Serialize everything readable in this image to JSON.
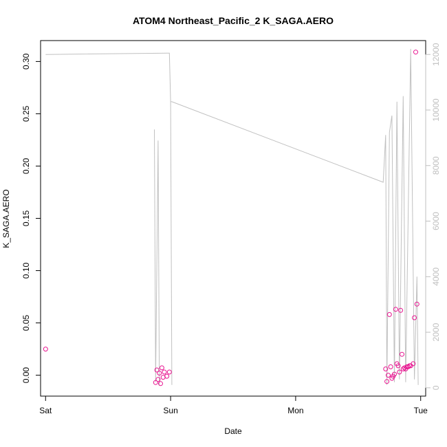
{
  "chart_data": {
    "type": "scatter",
    "title": "ATOM4 Northeast_Pacific_2 K_SAGA.AERO",
    "xlabel": "Date",
    "ylabel": "K_SAGA.AERO",
    "x_unit": "days since Sat 00:00",
    "xlim": [
      -0.04,
      3.04
    ],
    "x_ticks": [
      {
        "value": 0,
        "label": "Sat"
      },
      {
        "value": 1,
        "label": "Sun"
      },
      {
        "value": 2,
        "label": "Mon"
      },
      {
        "value": 3,
        "label": "Tue"
      }
    ],
    "ylim": [
      -0.02,
      0.32
    ],
    "y_ticks": [
      0.0,
      0.05,
      0.1,
      0.15,
      0.2,
      0.25,
      0.3
    ],
    "y_tick_labels": [
      "0.00",
      "0.05",
      "0.10",
      "0.15",
      "0.20",
      "0.25",
      "0.30"
    ],
    "y2lim": [
      -300,
      12500
    ],
    "y2_ticks": [
      0,
      2000,
      4000,
      6000,
      8000,
      10000,
      12000
    ],
    "y2_tick_labels": [
      "0",
      "2000",
      "4000",
      "6000",
      "8000",
      "10000",
      "12000"
    ],
    "grid": false,
    "colors": {
      "points": "#e8128f",
      "altitude_line": "#c0c0c0",
      "axis": "#000000",
      "secondary_axis": "#bfbfbf"
    },
    "series": [
      {
        "type": "scatter",
        "points": [
          {
            "x": 0.0,
            "y": 0.025
          },
          {
            "x": 0.88,
            "y": -0.007
          },
          {
            "x": 0.89,
            "y": 0.005
          },
          {
            "x": 0.9,
            "y": -0.004
          },
          {
            "x": 0.91,
            "y": 0.002
          },
          {
            "x": 0.92,
            "y": -0.008
          },
          {
            "x": 0.93,
            "y": 0.007
          },
          {
            "x": 0.94,
            "y": -0.002
          },
          {
            "x": 0.95,
            "y": 0.003
          },
          {
            "x": 0.97,
            "y": -0.001
          },
          {
            "x": 0.99,
            "y": 0.003
          },
          {
            "x": 2.72,
            "y": 0.006
          },
          {
            "x": 2.73,
            "y": -0.006
          },
          {
            "x": 2.74,
            "y": 0.0
          },
          {
            "x": 2.75,
            "y": 0.058
          },
          {
            "x": 2.76,
            "y": 0.008
          },
          {
            "x": 2.77,
            "y": -0.003
          },
          {
            "x": 2.78,
            "y": -0.001
          },
          {
            "x": 2.79,
            "y": 0.001
          },
          {
            "x": 2.8,
            "y": 0.063
          },
          {
            "x": 2.81,
            "y": 0.011
          },
          {
            "x": 2.82,
            "y": 0.009
          },
          {
            "x": 2.83,
            "y": 0.003
          },
          {
            "x": 2.84,
            "y": 0.062
          },
          {
            "x": 2.85,
            "y": 0.02
          },
          {
            "x": 2.86,
            "y": 0.006
          },
          {
            "x": 2.87,
            "y": 0.007
          },
          {
            "x": 2.88,
            "y": 0.006
          },
          {
            "x": 2.89,
            "y": 0.008
          },
          {
            "x": 2.9,
            "y": 0.008
          },
          {
            "x": 2.91,
            "y": 0.009
          },
          {
            "x": 2.92,
            "y": 0.009
          },
          {
            "x": 2.94,
            "y": 0.011
          },
          {
            "x": 2.95,
            "y": 0.055
          },
          {
            "x": 2.96,
            "y": 0.309
          },
          {
            "x": 2.97,
            "y": 0.068
          }
        ]
      },
      {
        "type": "line",
        "axis": "secondary",
        "points": [
          {
            "x": 0.0,
            "y": 12000
          },
          {
            "x": 0.98,
            "y": 12050
          },
          {
            "x": 0.99,
            "y": 12050
          },
          {
            "x": 1.0,
            "y": 10300
          },
          {
            "x": 1.01,
            "y": 100
          },
          {
            "x": 1.0,
            "y": 10300
          },
          {
            "x": 1.01,
            "y": 10300
          },
          {
            "x": 2.7,
            "y": 7400
          },
          {
            "x": 2.72,
            "y": 9100
          },
          {
            "x": 2.73,
            "y": 100
          },
          {
            "x": 2.75,
            "y": 9200
          },
          {
            "x": 2.77,
            "y": 9800
          },
          {
            "x": 2.79,
            "y": 200
          },
          {
            "x": 2.81,
            "y": 10300
          },
          {
            "x": 2.83,
            "y": 300
          },
          {
            "x": 2.86,
            "y": 10500
          },
          {
            "x": 2.88,
            "y": 200
          },
          {
            "x": 2.92,
            "y": 12200
          },
          {
            "x": 2.95,
            "y": 300
          },
          {
            "x": 2.97,
            "y": 4000
          },
          {
            "x": 2.98,
            "y": 100
          }
        ]
      },
      {
        "type": "line",
        "axis": "secondary",
        "points": [
          {
            "x": 0.87,
            "y": 9300
          },
          {
            "x": 0.88,
            "y": 200
          },
          {
            "x": 0.9,
            "y": 8900
          },
          {
            "x": 0.91,
            "y": 100
          }
        ]
      }
    ]
  }
}
